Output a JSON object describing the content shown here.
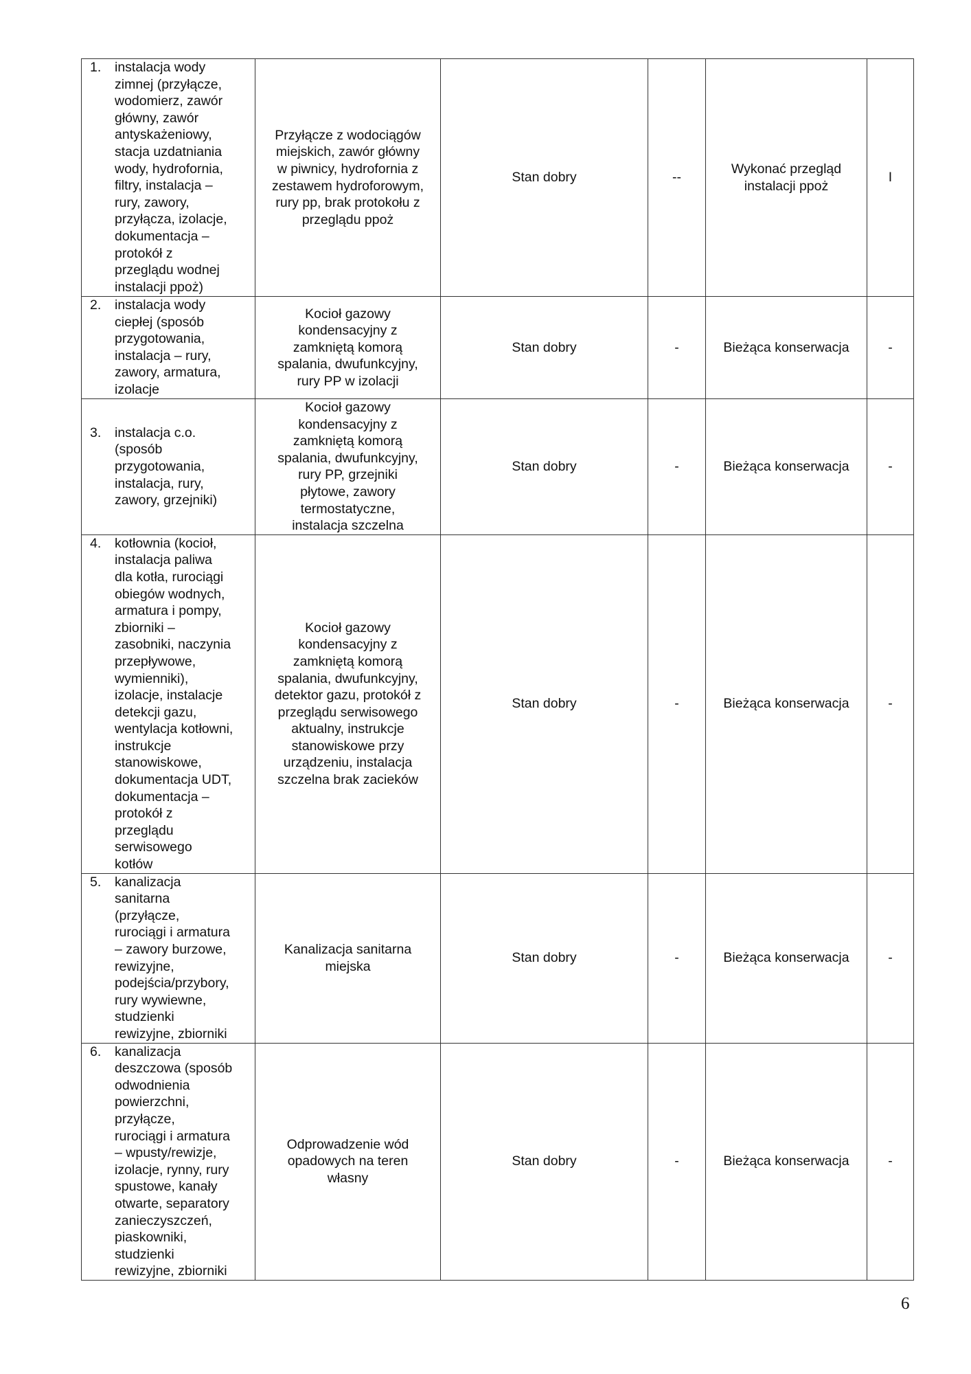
{
  "rows": [
    {
      "num": "1.",
      "element": "instalacja wody\nzimnej (przyłącze,\nwodomierz, zawór\ngłówny, zawór\nantyskażeniowy,\nstacja uzdatniania\nwody, hydrofornia,\nfiltry, instalacja –\nrury, zawory,\nprzyłącza, izolacje,\ndokumentacja –\nprotokół z\nprzeglądu wodnej\ninstalacji ppoż)",
      "description": "Przyłącze z wodociągów\nmiejskich, zawór główny\nw piwnicy, hydrofornia z\nzestawem hydroforowym,\nrury pp, brak protokołu z\nprzeglądu ppoż",
      "condition": "Stan dobry",
      "col4": "--",
      "recommendation": "Wykonać przegląd\ninstalacji ppoż",
      "priority": "I"
    },
    {
      "num": "2.",
      "element": "instalacja wody\nciepłej (sposób\nprzygotowania,\ninstalacja – rury,\nzawory, armatura,\nizolacje",
      "description": "Kocioł gazowy\nkondensacyjny z\nzamkniętą komorą\nspalania, dwufunkcyjny,\nrury PP w izolacji",
      "condition": "Stan dobry",
      "col4": "-",
      "recommendation": "Bieżąca konserwacja",
      "priority": "-"
    },
    {
      "num": "3.",
      "element": "instalacja c.o.\n(sposób\nprzygotowania,\ninstalacja, rury,\nzawory, grzejniki)",
      "description": "Kocioł gazowy\nkondensacyjny z\nzamkniętą komorą\nspalania, dwufunkcyjny,\nrury PP, grzejniki\npłytowe, zawory\ntermostatyczne,\ninstalacja szczelna",
      "condition": "Stan dobry",
      "col4": "-",
      "recommendation": "Bieżąca konserwacja",
      "priority": "-"
    },
    {
      "num": "4.",
      "element": "kotłownia (kocioł,\ninstalacja paliwa\ndla kotła, rurociągi\nobiegów wodnych,\narmatura i pompy,\nzbiorniki –\nzasobniki, naczynia\nprzepływowe,\nwymienniki),\nizolacje, instalacje\ndetekcji gazu,\nwentylacja kotłowni,\ninstrukcje\nstanowiskowe,\ndokumentacja UDT,\ndokumentacja –\nprotokół z\nprzeglądu\nserwisowego\nkotłów",
      "description": "Kocioł gazowy\nkondensacyjny z\nzamkniętą komorą\nspalania, dwufunkcyjny,\ndetektor gazu, protokół z\nprzeglądu serwisowego\naktualny, instrukcje\nstanowiskowe przy\nurządzeniu, instalacja\nszczelna brak zacieków",
      "condition": "Stan dobry",
      "col4": "-",
      "recommendation": "Bieżąca konserwacja",
      "priority": "-"
    },
    {
      "num": "5.",
      "element": "kanalizacja\nsanitarna\n(przyłącze,\nrurociągi i armatura\n– zawory burzowe,\nrewizyjne,\npodejścia/przybory,\nrury wywiewne,\nstudzienki\nrewizyjne, zbiorniki",
      "description": "Kanalizacja sanitarna\nmiejska",
      "condition": "Stan dobry",
      "col4": "-",
      "recommendation": "Bieżąca konserwacja",
      "priority": "-"
    },
    {
      "num": "6.",
      "element": "kanalizacja\ndeszczowa (sposób\nodwodnienia\npowierzchni,\nprzyłącze,\nrurociągi i armatura\n–    wpusty/rewizje,\nizolacje, rynny, rury\nspustowe,    kanały\notwarte,  separatory\nzanieczyszczeń,\npiaskowniki,\nstudzienki\nrewizyjne, zbiorniki",
      "description": "Odprowadzenie wód\nopadowych na teren\nwłasny",
      "condition": "Stan dobry",
      "col4": "-",
      "recommendation": "Bieżąca konserwacja",
      "priority": "-"
    }
  ],
  "page_number": "6"
}
